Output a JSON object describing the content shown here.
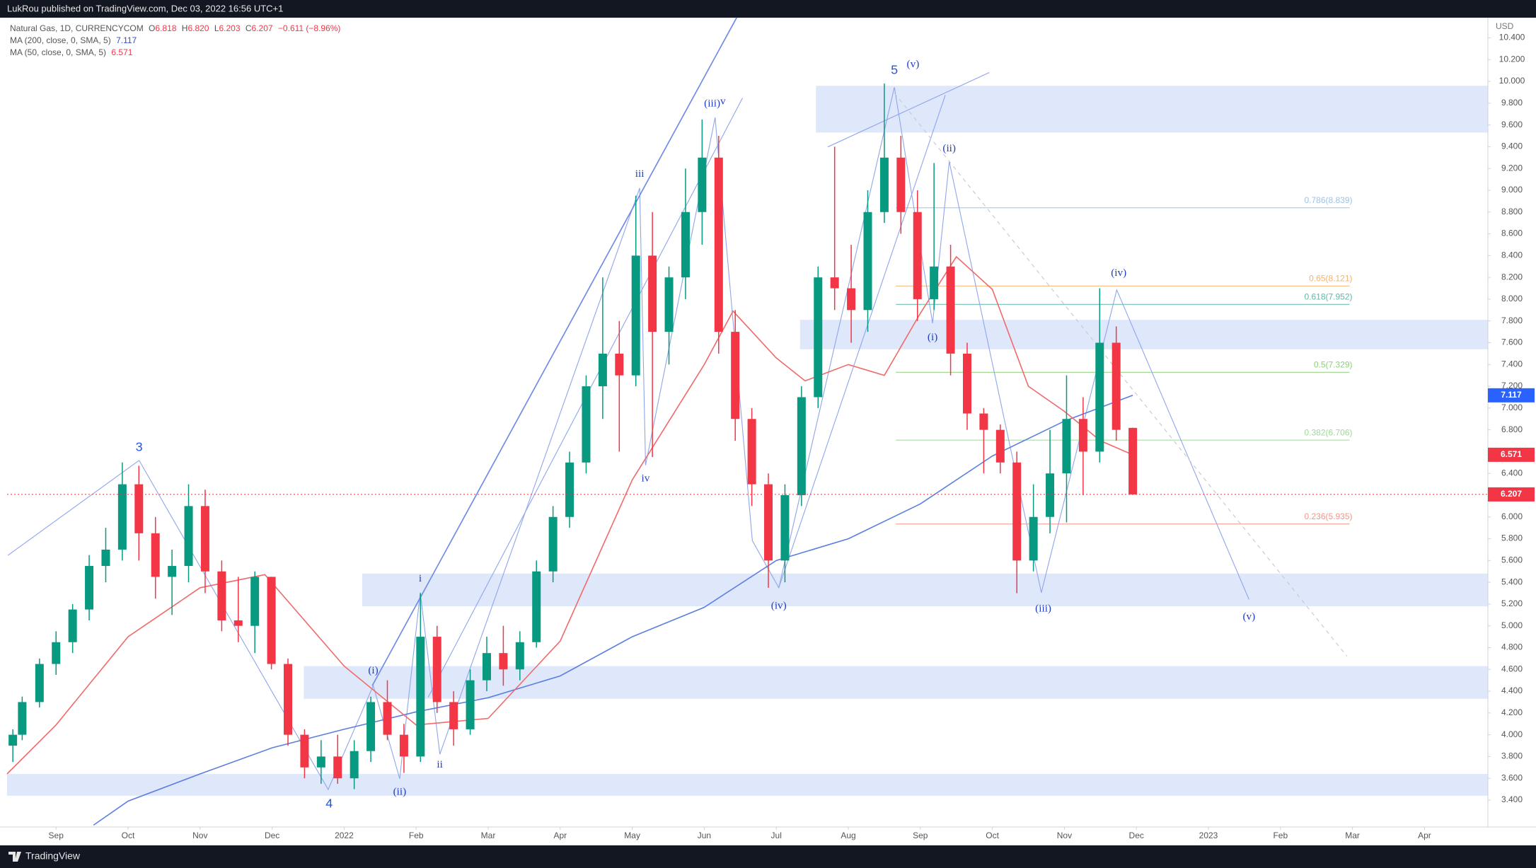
{
  "header": {
    "published": "LukRou published on TradingView.com, Dec 03, 2022 16:56 UTC+1"
  },
  "footer": {
    "brand": "TradingView"
  },
  "chart_data": {
    "type": "candlestick",
    "legend": {
      "symbol": "Natural Gas, 1D, CURRENCYCOM",
      "ohlc": [
        {
          "key": "O",
          "value": 6.818,
          "label": "6.818"
        },
        {
          "key": "H",
          "value": 6.82,
          "label": "6.820"
        },
        {
          "key": "L",
          "value": 6.203,
          "label": "6.203"
        },
        {
          "key": "C",
          "value": 6.207,
          "label": "6.207"
        }
      ],
      "change": "−0.611 (−8.96%)"
    },
    "currency": "USD",
    "up_color": "#089981",
    "down_color": "#f23645",
    "candles": {
      "x": [
        -0.6,
        -0.47,
        -0.23,
        0,
        0.23,
        0.46,
        0.69,
        0.92,
        1.15,
        1.38,
        1.61,
        1.84,
        2.07,
        2.3,
        2.53,
        2.76,
        2.99,
        3.22,
        3.45,
        3.68,
        3.91,
        4.14,
        4.37,
        4.6,
        4.83,
        5.06,
        5.29,
        5.52,
        5.75,
        5.98,
        6.21,
        6.44,
        6.67,
        6.9,
        7.13,
        7.36,
        7.59,
        7.82,
        8.05,
        8.28,
        8.51,
        8.74,
        8.97,
        9.2,
        9.43,
        9.66,
        9.89,
        10.12,
        10.35,
        10.58,
        10.81,
        11.04,
        11.27,
        11.5,
        11.73,
        11.96,
        12.19,
        12.42,
        12.65,
        12.88,
        13.11,
        13.34,
        13.57,
        13.8,
        14.03,
        14.26,
        14.49,
        14.72,
        14.95
      ],
      "open": [
        3.9,
        4.0,
        4.3,
        4.65,
        4.85,
        5.15,
        5.55,
        5.7,
        6.3,
        5.85,
        5.45,
        5.55,
        6.1,
        5.5,
        5.05,
        5.0,
        5.45,
        4.65,
        4.0,
        3.7,
        3.8,
        3.6,
        3.85,
        4.3,
        4.0,
        3.8,
        4.9,
        4.3,
        4.05,
        4.5,
        4.75,
        4.6,
        4.85,
        5.5,
        6.0,
        6.5,
        7.2,
        7.5,
        7.3,
        8.4,
        7.7,
        8.2,
        8.8,
        9.3,
        7.7,
        6.9,
        6.3,
        5.6,
        6.2,
        7.1,
        8.2,
        8.1,
        7.9,
        8.8,
        9.3,
        8.8,
        8.0,
        8.3,
        7.5,
        6.95,
        6.8,
        6.5,
        5.6,
        6.0,
        6.4,
        6.9,
        6.6,
        7.6,
        6.818
      ],
      "high": [
        4.05,
        4.35,
        4.7,
        4.95,
        5.2,
        5.65,
        5.9,
        6.5,
        6.47,
        6.0,
        5.7,
        6.3,
        6.25,
        5.6,
        5.45,
        5.5,
        5.45,
        4.7,
        4.05,
        3.95,
        4.0,
        3.95,
        4.35,
        4.5,
        4.1,
        5.3,
        5.0,
        4.4,
        4.6,
        4.9,
        5.0,
        4.95,
        5.6,
        6.1,
        6.6,
        7.3,
        8.2,
        7.8,
        8.95,
        8.8,
        8.3,
        9.2,
        9.65,
        9.5,
        7.9,
        7.0,
        6.4,
        6.3,
        7.2,
        8.3,
        9.4,
        8.5,
        9.0,
        9.98,
        9.5,
        9.0,
        9.25,
        8.5,
        7.6,
        7.0,
        6.85,
        6.6,
        6.3,
        6.8,
        7.3,
        7.1,
        8.1,
        7.75,
        6.82
      ],
      "low": [
        3.75,
        3.95,
        4.25,
        4.55,
        4.75,
        5.05,
        5.4,
        5.6,
        5.6,
        5.25,
        5.1,
        5.4,
        5.3,
        4.95,
        4.85,
        4.75,
        4.6,
        3.9,
        3.6,
        3.55,
        3.55,
        3.5,
        3.75,
        3.95,
        3.65,
        3.75,
        4.2,
        3.9,
        4.0,
        4.4,
        4.45,
        4.5,
        4.8,
        5.4,
        5.9,
        6.4,
        6.9,
        6.6,
        7.2,
        6.55,
        7.4,
        8.0,
        8.5,
        7.5,
        6.7,
        6.1,
        5.35,
        5.4,
        6.1,
        7.0,
        7.9,
        7.6,
        7.7,
        8.7,
        8.6,
        7.8,
        7.9,
        7.3,
        6.8,
        6.4,
        6.4,
        5.3,
        5.5,
        5.85,
        5.95,
        6.2,
        6.5,
        6.7,
        6.203
      ],
      "close": [
        4.0,
        4.3,
        4.65,
        4.85,
        5.15,
        5.55,
        5.7,
        6.3,
        5.85,
        5.45,
        5.55,
        6.1,
        5.5,
        5.05,
        5.0,
        5.45,
        4.65,
        4.0,
        3.7,
        3.8,
        3.6,
        3.85,
        4.3,
        4.0,
        3.8,
        4.9,
        4.3,
        4.05,
        4.5,
        4.75,
        4.6,
        4.85,
        5.5,
        6.0,
        6.5,
        7.2,
        7.5,
        7.3,
        8.4,
        7.7,
        8.2,
        8.8,
        9.3,
        7.7,
        6.9,
        6.3,
        5.6,
        6.2,
        7.1,
        8.2,
        8.1,
        7.9,
        8.8,
        9.3,
        8.8,
        8.0,
        8.3,
        7.5,
        6.95,
        6.8,
        6.5,
        5.6,
        6.0,
        6.4,
        6.9,
        6.6,
        7.6,
        6.8,
        6.207
      ]
    },
    "series": [
      {
        "name": "MA (200, close, 0, SMA, 5)",
        "color": "#5b7fe0",
        "x": [
          0.52,
          1,
          2,
          3,
          4,
          5,
          6,
          7,
          8,
          9,
          10,
          11,
          12,
          13,
          14,
          14.95
        ],
        "values": [
          3.17,
          3.39,
          3.64,
          3.88,
          4.05,
          4.21,
          4.34,
          4.54,
          4.9,
          5.17,
          5.6,
          5.8,
          6.12,
          6.56,
          6.88,
          7.117
        ]
      },
      {
        "name": "MA (50, close, 0, SMA, 5)",
        "color": "#f06a6a",
        "x": [
          -0.68,
          0,
          1,
          2,
          2.9,
          4,
          5,
          6,
          7,
          8,
          9,
          9.4,
          10,
          10.4,
          11,
          11.5,
          12,
          12.5,
          13,
          13.5,
          14,
          14.5,
          14.95
        ],
        "values": [
          3.64,
          4.09,
          4.9,
          5.35,
          5.47,
          4.63,
          4.09,
          4.15,
          4.86,
          6.34,
          7.4,
          7.89,
          7.46,
          7.25,
          7.4,
          7.3,
          7.87,
          8.39,
          8.09,
          7.2,
          6.97,
          6.7,
          6.571
        ]
      }
    ],
    "zones": [
      {
        "x0": -0.68,
        "low": 3.44,
        "high": 3.64
      },
      {
        "x0": 3.44,
        "low": 4.33,
        "high": 4.63
      },
      {
        "x0": 4.25,
        "low": 5.18,
        "high": 5.48
      },
      {
        "x0": 10.33,
        "low": 7.54,
        "high": 7.81
      },
      {
        "x0": 10.55,
        "low": 9.53,
        "high": 9.96
      }
    ],
    "zone_color": "#dfe7fb",
    "fib": {
      "x": [
        11.66,
        17.96
      ],
      "levels": [
        {
          "label": "0.786(8.839)",
          "value": 8.839,
          "color": "#9cc3e6"
        },
        {
          "label": "0.65(8.121)",
          "value": 8.121,
          "color": "#f5b26b"
        },
        {
          "label": "0.618(7.952)",
          "value": 7.952,
          "color": "#5fb8a8"
        },
        {
          "label": "0.5(7.329)",
          "value": 7.329,
          "color": "#8fcf7a"
        },
        {
          "label": "0.382(6.706)",
          "value": 6.706,
          "color": "#9fd89a"
        },
        {
          "label": "0.236(5.935)",
          "value": 5.935,
          "color": "#f3968a"
        }
      ]
    },
    "wave_labels": [
      "3",
      "4",
      "(i)",
      "(ii)",
      "i",
      "ii",
      "iii",
      "iv",
      "(iii)",
      "v",
      "(iv)",
      "5",
      "(v)",
      "(ii)",
      "(i)",
      "(iv)",
      "(iii)",
      "(v)"
    ],
    "xlim": [
      -0.68,
      19.88
    ],
    "xticks": [
      {
        "value": 0,
        "label": "Sep"
      },
      {
        "value": 1,
        "label": "Oct"
      },
      {
        "value": 2,
        "label": "Nov"
      },
      {
        "value": 3,
        "label": "Dec"
      },
      {
        "value": 4,
        "label": "2022"
      },
      {
        "value": 5,
        "label": "Feb"
      },
      {
        "value": 6,
        "label": "Mar"
      },
      {
        "value": 7,
        "label": "Apr"
      },
      {
        "value": 8,
        "label": "May"
      },
      {
        "value": 9,
        "label": "Jun"
      },
      {
        "value": 10,
        "label": "Jul"
      },
      {
        "value": 11,
        "label": "Aug"
      },
      {
        "value": 12,
        "label": "Sep"
      },
      {
        "value": 13,
        "label": "Oct"
      },
      {
        "value": 14,
        "label": "Nov"
      },
      {
        "value": 15,
        "label": "Dec"
      },
      {
        "value": 16,
        "label": "2023"
      },
      {
        "value": 17,
        "label": "Feb"
      },
      {
        "value": 18,
        "label": "Mar"
      },
      {
        "value": 19,
        "label": "Apr"
      }
    ],
    "ylim": [
      3.153,
      10.585
    ],
    "yticks": [
      {
        "value": 3.4,
        "label": "3.400"
      },
      {
        "value": 3.6,
        "label": "3.600"
      },
      {
        "value": 3.8,
        "label": "3.800"
      },
      {
        "value": 4.0,
        "label": "4.000"
      },
      {
        "value": 4.2,
        "label": "4.200"
      },
      {
        "value": 4.4,
        "label": "4.400"
      },
      {
        "value": 4.6,
        "label": "4.600"
      },
      {
        "value": 4.8,
        "label": "4.800"
      },
      {
        "value": 5.0,
        "label": "5.000"
      },
      {
        "value": 5.2,
        "label": "5.200"
      },
      {
        "value": 5.4,
        "label": "5.400"
      },
      {
        "value": 5.6,
        "label": "5.600"
      },
      {
        "value": 5.8,
        "label": "5.800"
      },
      {
        "value": 6.0,
        "label": "6.000"
      },
      {
        "value": 6.2,
        "label": "6.200"
      },
      {
        "value": 6.4,
        "label": "6.400"
      },
      {
        "value": 6.6,
        "label": "6.600"
      },
      {
        "value": 6.8,
        "label": "6.800"
      },
      {
        "value": 7.0,
        "label": "7.000"
      },
      {
        "value": 7.2,
        "label": "7.200"
      },
      {
        "value": 7.4,
        "label": "7.400"
      },
      {
        "value": 7.6,
        "label": "7.600"
      },
      {
        "value": 7.8,
        "label": "7.800"
      },
      {
        "value": 8.0,
        "label": "8.000"
      },
      {
        "value": 8.2,
        "label": "8.200"
      },
      {
        "value": 8.4,
        "label": "8.400"
      },
      {
        "value": 8.6,
        "label": "8.600"
      },
      {
        "value": 8.8,
        "label": "8.800"
      },
      {
        "value": 9.0,
        "label": "9.000"
      },
      {
        "value": 9.2,
        "label": "9.200"
      },
      {
        "value": 9.4,
        "label": "9.400"
      },
      {
        "value": 9.6,
        "label": "9.600"
      },
      {
        "value": 9.8,
        "label": "9.800"
      },
      {
        "value": 10.0,
        "label": "10.000"
      },
      {
        "value": 10.2,
        "label": "10.200"
      },
      {
        "value": 10.4,
        "label": "10.400"
      }
    ],
    "grid": false
  }
}
